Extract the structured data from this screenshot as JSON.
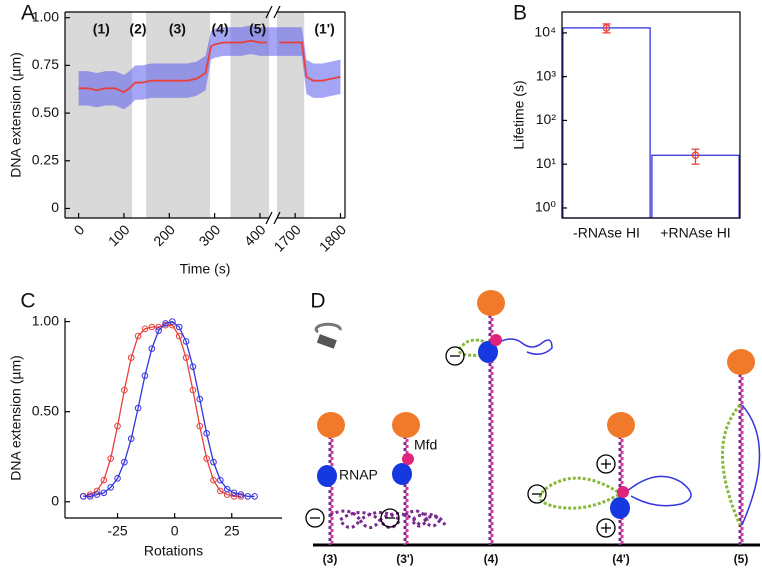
{
  "panel_labels": [
    "A",
    "B",
    "C",
    "D"
  ],
  "chart_data": [
    {
      "type": "line",
      "xlabel": "Time (s)",
      "ylabel": "DNA extension (µm)",
      "xlim": [
        -30,
        1810
      ],
      "xbreak": [
        420,
        1660
      ],
      "ylim": [
        -0.05,
        1.03
      ],
      "xticks": [
        0,
        100,
        200,
        300,
        400,
        1700,
        1800
      ],
      "yticks": [
        0,
        0.25,
        {
          "value": 0.5,
          "label": "0.50"
        },
        0.75,
        {
          "value": 1,
          "label": "1.00"
        }
      ],
      "xticks_rotated": true,
      "shaded": {
        "color": "#d9d9d9",
        "intervals": [
          [
            -30,
            118
          ],
          [
            149,
            290
          ],
          [
            335,
            420
          ],
          [
            1660,
            1720
          ]
        ]
      },
      "annotations": [
        {
          "text": "(1)",
          "x": 50
        },
        {
          "text": "(2)",
          "x": 131
        },
        {
          "text": "(3)",
          "x": 218
        },
        {
          "text": "(4)",
          "x": 312
        },
        {
          "text": "(5)",
          "x": 395
        },
        {
          "text": "(1')",
          "x": 1765
        }
      ],
      "x": [
        0,
        20,
        40,
        60,
        80,
        100,
        112,
        125,
        140,
        160,
        180,
        200,
        220,
        240,
        260,
        280,
        292,
        300,
        320,
        340,
        360,
        380,
        400,
        415,
        1665,
        1680,
        1700,
        1715,
        1725,
        1740,
        1760,
        1780,
        1800
      ],
      "band": {
        "color": "#5b5bef",
        "lower": [
          0.54,
          0.54,
          0.53,
          0.54,
          0.54,
          0.52,
          0.54,
          0.57,
          0.57,
          0.58,
          0.58,
          0.58,
          0.58,
          0.58,
          0.59,
          0.62,
          0.78,
          0.79,
          0.8,
          0.8,
          0.8,
          0.81,
          0.8,
          0.8,
          0.8,
          0.8,
          0.8,
          0.8,
          0.6,
          0.58,
          0.58,
          0.59,
          0.6
        ],
        "upper": [
          0.72,
          0.72,
          0.71,
          0.72,
          0.72,
          0.7,
          0.72,
          0.75,
          0.75,
          0.76,
          0.76,
          0.76,
          0.76,
          0.76,
          0.77,
          0.8,
          0.93,
          0.94,
          0.95,
          0.95,
          0.95,
          0.96,
          0.95,
          0.95,
          0.95,
          0.95,
          0.95,
          0.95,
          0.78,
          0.76,
          0.76,
          0.77,
          0.78
        ]
      },
      "series": [
        {
          "color": "#e8413c",
          "values": [
            0.63,
            0.63,
            0.62,
            0.63,
            0.63,
            0.61,
            0.63,
            0.66,
            0.66,
            0.67,
            0.67,
            0.67,
            0.67,
            0.67,
            0.68,
            0.71,
            0.85,
            0.86,
            0.87,
            0.87,
            0.87,
            0.88,
            0.87,
            0.87,
            0.87,
            0.87,
            0.87,
            0.87,
            0.69,
            0.67,
            0.67,
            0.68,
            0.69
          ]
        }
      ]
    },
    {
      "type": "bar",
      "ylabel": "Lifetime (s)",
      "log_scale": true,
      "categories": [
        "-RNAse HI",
        "+RNAse HI"
      ],
      "values": [
        13000,
        16
      ],
      "errors": [
        3000,
        6
      ],
      "color": "#3535e0",
      "error_color": "#e8413c",
      "ylim": [
        0.59,
        30000
      ],
      "yticks": [
        {
          "value": 1,
          "label": "10⁰"
        },
        {
          "value": 10,
          "label": "10¹"
        },
        {
          "value": 100,
          "label": "10²"
        },
        {
          "value": 1000,
          "label": "10³"
        },
        {
          "value": 10000,
          "label": "10⁴"
        }
      ]
    },
    {
      "type": "line",
      "xlabel": "Rotations",
      "ylabel": "DNA extension (µm)",
      "markers": true,
      "xlim": [
        -48,
        47
      ],
      "ylim": [
        -0.09,
        1.02
      ],
      "xticks": [
        -25,
        0,
        25
      ],
      "yticks": [
        0,
        {
          "value": 0.5,
          "label": "0.50"
        },
        {
          "value": 1,
          "label": "1.00"
        }
      ],
      "x": [
        -40,
        -37,
        -34,
        -31,
        -28,
        -25,
        -22,
        -19,
        -16,
        -13,
        -10,
        -7,
        -4,
        -1,
        2,
        5,
        8,
        11,
        14,
        17,
        20,
        23,
        26,
        29,
        32,
        35
      ],
      "series": [
        {
          "color": "#e8413c",
          "values": [
            0.03,
            0.04,
            0.06,
            0.12,
            0.24,
            0.42,
            0.62,
            0.8,
            0.92,
            0.96,
            0.97,
            0.97,
            0.98,
            0.98,
            0.92,
            0.8,
            0.62,
            0.42,
            0.24,
            0.12,
            0.06,
            0.04,
            0.03,
            0.03,
            null,
            null
          ]
        },
        {
          "color": "#3535e0",
          "values": [
            0.03,
            0.03,
            0.04,
            0.05,
            0.08,
            0.13,
            0.22,
            0.35,
            0.52,
            0.7,
            0.85,
            0.95,
            0.99,
            1.0,
            0.97,
            0.89,
            0.75,
            0.57,
            0.38,
            0.22,
            0.12,
            0.07,
            0.05,
            0.04,
            0.03,
            0.03
          ]
        }
      ]
    }
  ],
  "diagram": {
    "labels": [
      "(3)",
      "(3')",
      "(4)",
      "(4')",
      "(5)"
    ],
    "rnap": "RNAP",
    "mfd": "Mfd"
  }
}
